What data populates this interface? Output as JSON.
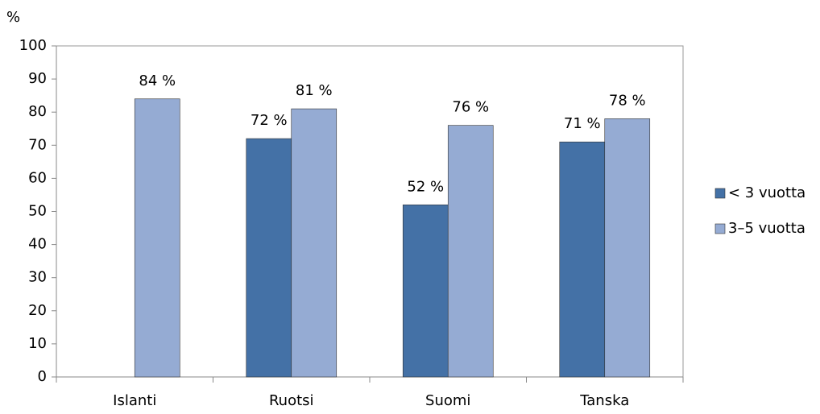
{
  "chart_data": {
    "type": "bar",
    "y_axis_label": "%",
    "categories": [
      "Islanti",
      "Ruotsi",
      "Suomi",
      "Tanska"
    ],
    "series": [
      {
        "name": "< 3 vuotta",
        "color": "#4471a6",
        "values": [
          null,
          72,
          52,
          71
        ],
        "value_labels": [
          null,
          "72 %",
          "52 %",
          "71 %"
        ]
      },
      {
        "name": "3–5 vuotta",
        "color": "#95abd3",
        "values": [
          84,
          81,
          76,
          78
        ],
        "value_labels": [
          "84 %",
          "81 %",
          "76 %",
          "78 %"
        ]
      }
    ],
    "ylim": [
      0,
      100
    ],
    "yticks": [
      0,
      10,
      20,
      30,
      40,
      50,
      60,
      70,
      80,
      90,
      100
    ],
    "grid": false,
    "legend": "right"
  }
}
